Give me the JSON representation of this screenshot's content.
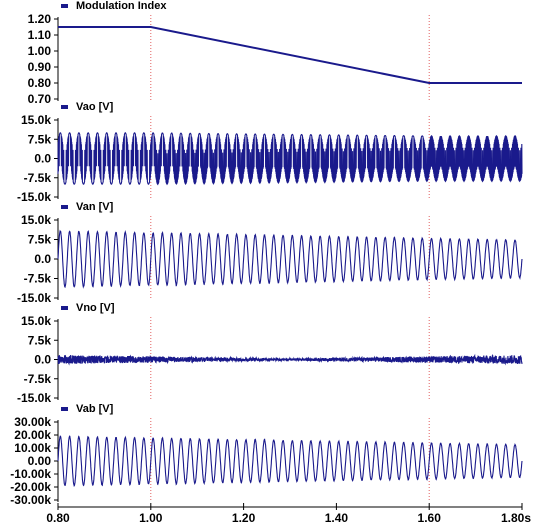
{
  "chart_data": {
    "type": "line",
    "x_ticks": [
      "0.80",
      "1.00",
      "1.20",
      "1.40",
      "1.60",
      "1.80s"
    ],
    "xlim": [
      0.8,
      1.8
    ],
    "vertical_markers": [
      1.0,
      1.6
    ],
    "colors": {
      "series": "#1a1a8c",
      "marker": "#e06060",
      "axis": "#000000"
    },
    "panels": [
      {
        "id": "modulation",
        "legend": "Modulation Index",
        "ylim": [
          0.7,
          1.2
        ],
        "y_ticks": [
          "1.20",
          "1.10",
          "1.00",
          "0.90",
          "0.80",
          "0.70"
        ],
        "kind": "piecewise",
        "x": [
          0.8,
          1.0,
          1.6,
          1.8
        ],
        "y": [
          1.15,
          1.15,
          0.8,
          0.8
        ]
      },
      {
        "id": "vao",
        "legend": "Vao [V]",
        "ylim": [
          -15000,
          15000
        ],
        "y_ticks": [
          "15.0k",
          "7.5k",
          "0.0",
          "-7.5k",
          "-15.0k"
        ],
        "kind": "pwm",
        "fundamental_hz": 50,
        "peak": 10000,
        "dc_levels": [
          -10000,
          10000
        ]
      },
      {
        "id": "van",
        "legend": "Van [V]",
        "ylim": [
          -15000,
          15000
        ],
        "y_ticks": [
          "15.0k",
          "7.5k",
          "0.0",
          "-7.5k",
          "-15.0k"
        ],
        "kind": "sine",
        "fundamental_hz": 50,
        "amplitude_start": 10800,
        "amplitude_end": 7200
      },
      {
        "id": "vno",
        "legend": "Vno [V]",
        "ylim": [
          -15000,
          15000
        ],
        "y_ticks": [
          "15.0k",
          "7.5k",
          "0.0",
          "-7.5k",
          "-15.0k"
        ],
        "kind": "noise",
        "amplitude_start": 1800,
        "amplitude_min": 400,
        "amplitude_end": 1800
      },
      {
        "id": "vab",
        "legend": "Vab [V]",
        "ylim": [
          -30000,
          30000
        ],
        "y_ticks": [
          "30.00k",
          "20.00k",
          "10.00k",
          "0.00",
          "-10.00k",
          "-20.00k",
          "-30.00k"
        ],
        "kind": "sine",
        "fundamental_hz": 50,
        "amplitude_start": 19000,
        "amplitude_end": 12500
      }
    ]
  }
}
